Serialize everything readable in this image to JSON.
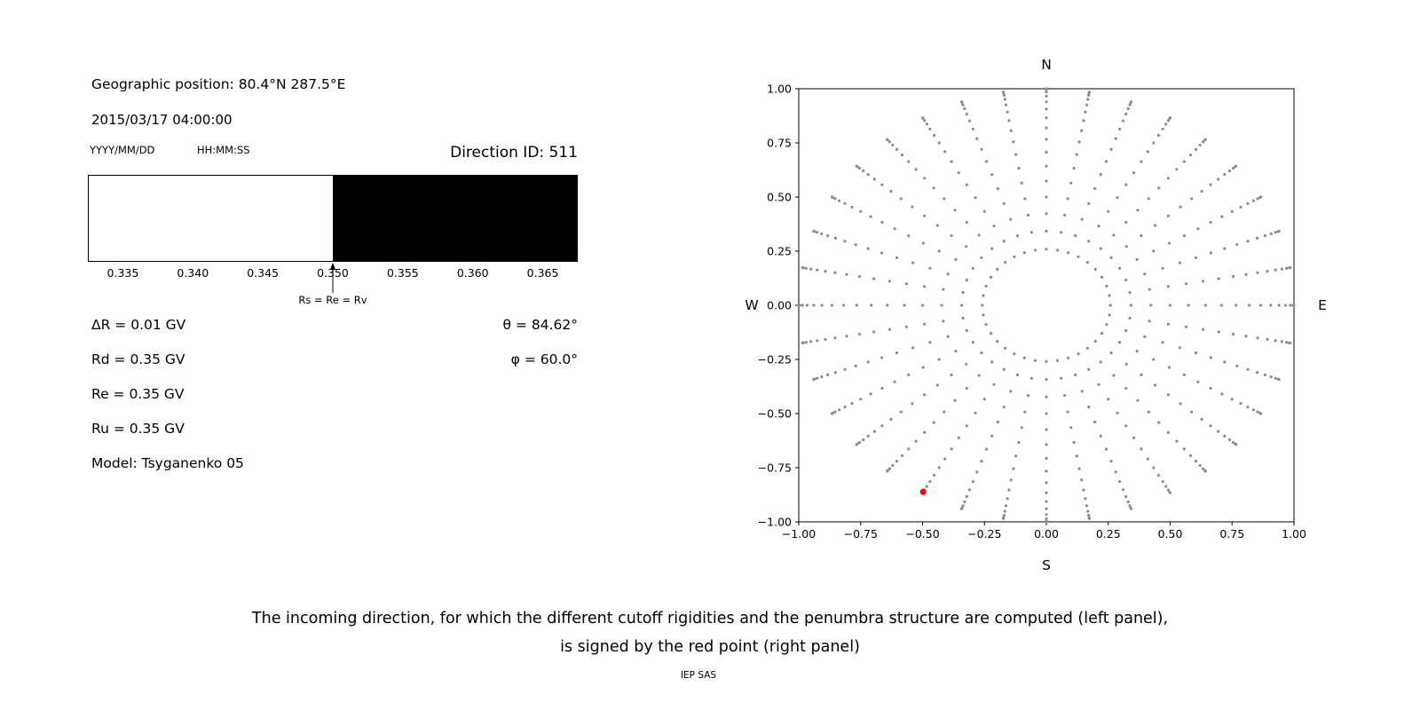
{
  "header": {
    "geographic_position": "Geographic position: 80.4°N 287.5°E",
    "datetime": "2015/03/17 04:00:00",
    "date_format_label": "YYYY/MM/DD",
    "time_format_label": "HH:MM:SS",
    "direction_id": "Direction ID: 511"
  },
  "parameters": {
    "delta_r": "ΔR = 0.01 GV",
    "rd": "Rd = 0.35 GV",
    "re": "Re = 0.35 GV",
    "ru": "Ru = 0.35 GV",
    "model": "Model: Tsyganenko 05",
    "theta": "θ = 84.62°",
    "phi": "φ = 60.0°"
  },
  "caption": {
    "line1": "The incoming direction, for which the different cutoff rigidities and the penumbra structure are computed (left panel),",
    "line2": "is signed by the red point (right panel)",
    "credit": "IEP SAS"
  },
  "chart_data": [
    {
      "type": "area",
      "name": "penumbra-structure",
      "xlim": [
        0.3325,
        0.3675
      ],
      "regions": [
        {
          "from": 0.3325,
          "to": 0.35,
          "color": "#ffffff"
        },
        {
          "from": 0.35,
          "to": 0.3675,
          "color": "#000000"
        }
      ],
      "xtick_values": [
        0.335,
        0.34,
        0.345,
        0.35,
        0.355,
        0.36,
        0.365
      ],
      "xtick_labels": [
        "0.335",
        "0.340",
        "0.345",
        "0.350",
        "0.355",
        "0.360",
        "0.365"
      ],
      "annotation": {
        "x": 0.35,
        "label": "Rs = Re = Rv"
      }
    },
    {
      "type": "scatter",
      "name": "incoming-direction-map",
      "xlim": [
        -1.0,
        1.0
      ],
      "ylim": [
        -1.0,
        1.0
      ],
      "xtick_values": [
        -1.0,
        -0.75,
        -0.5,
        -0.25,
        0.0,
        0.25,
        0.5,
        0.75,
        1.0
      ],
      "xtick_labels": [
        "−1.00",
        "−0.75",
        "−0.50",
        "−0.25",
        "0.00",
        "0.25",
        "0.50",
        "0.75",
        "1.00"
      ],
      "ytick_values": [
        1.0,
        0.75,
        0.5,
        0.25,
        0.0,
        -0.25,
        -0.5,
        -0.75,
        -1.0
      ],
      "ytick_labels": [
        "1.00",
        "0.75",
        "0.50",
        "0.25",
        "0.00",
        "−0.25",
        "−0.50",
        "−0.75",
        "−1.00"
      ],
      "compass": {
        "top": "N",
        "bottom": "S",
        "left": "W",
        "right": "E"
      },
      "direction_grid": {
        "azimuth_deg_start": 0,
        "azimuth_deg_step": 10,
        "azimuth_count": 36,
        "zenith_deg_min": 15,
        "zenith_deg_max": 90,
        "zenith_deg_step": 5,
        "radius_rule": "sin(zenith)",
        "dot_color": "#8c8c8c"
      },
      "selected_direction": {
        "x": -0.498,
        "y": -0.862,
        "theta_deg": 84.62,
        "phi_deg": 60.0,
        "color": "#ff0000"
      }
    }
  ]
}
